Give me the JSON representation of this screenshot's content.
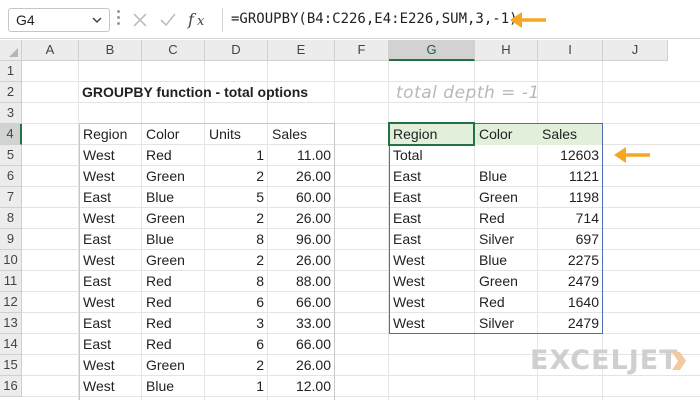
{
  "formula_bar": {
    "name_box": "G4",
    "formula": "=GROUPBY(B4:C226,E4:E226,SUM,3,-1)",
    "fx_label": "fx"
  },
  "columns": [
    "A",
    "B",
    "C",
    "D",
    "E",
    "F",
    "G",
    "H",
    "I",
    "J"
  ],
  "rows": [
    "1",
    "2",
    "3",
    "4",
    "5",
    "6",
    "7",
    "8",
    "9",
    "10",
    "11",
    "12",
    "13",
    "14",
    "15",
    "16"
  ],
  "active_column": "G",
  "active_row": "4",
  "title": "GROUPBY function - total options",
  "note": "total depth = -1",
  "source_table": {
    "headers": [
      "Region",
      "Color",
      "Units",
      "Sales"
    ],
    "rows": [
      [
        "West",
        "Red",
        "1",
        "11.00"
      ],
      [
        "West",
        "Green",
        "2",
        "26.00"
      ],
      [
        "East",
        "Blue",
        "5",
        "60.00"
      ],
      [
        "West",
        "Green",
        "2",
        "26.00"
      ],
      [
        "East",
        "Blue",
        "8",
        "96.00"
      ],
      [
        "West",
        "Green",
        "2",
        "26.00"
      ],
      [
        "East",
        "Red",
        "8",
        "88.00"
      ],
      [
        "West",
        "Red",
        "6",
        "66.00"
      ],
      [
        "East",
        "Red",
        "3",
        "33.00"
      ],
      [
        "East",
        "Red",
        "6",
        "66.00"
      ],
      [
        "West",
        "Green",
        "2",
        "26.00"
      ],
      [
        "West",
        "Blue",
        "1",
        "12.00"
      ]
    ]
  },
  "result_table": {
    "headers": [
      "Region",
      "Color",
      "Sales"
    ],
    "rows": [
      [
        "Total",
        "",
        "12603"
      ],
      [
        "East",
        "Blue",
        "1121"
      ],
      [
        "East",
        "Green",
        "1198"
      ],
      [
        "East",
        "Red",
        "714"
      ],
      [
        "East",
        "Silver",
        "697"
      ],
      [
        "West",
        "Blue",
        "2275"
      ],
      [
        "West",
        "Green",
        "2479"
      ],
      [
        "West",
        "Red",
        "1640"
      ],
      [
        "West",
        "Silver",
        "2479"
      ]
    ]
  },
  "logo": "EXCELJET",
  "colors": {
    "arrow": "#f5a623",
    "selection": "#217346",
    "result_header_fill": "#e2efda",
    "result_border": "#4a6fb8"
  }
}
